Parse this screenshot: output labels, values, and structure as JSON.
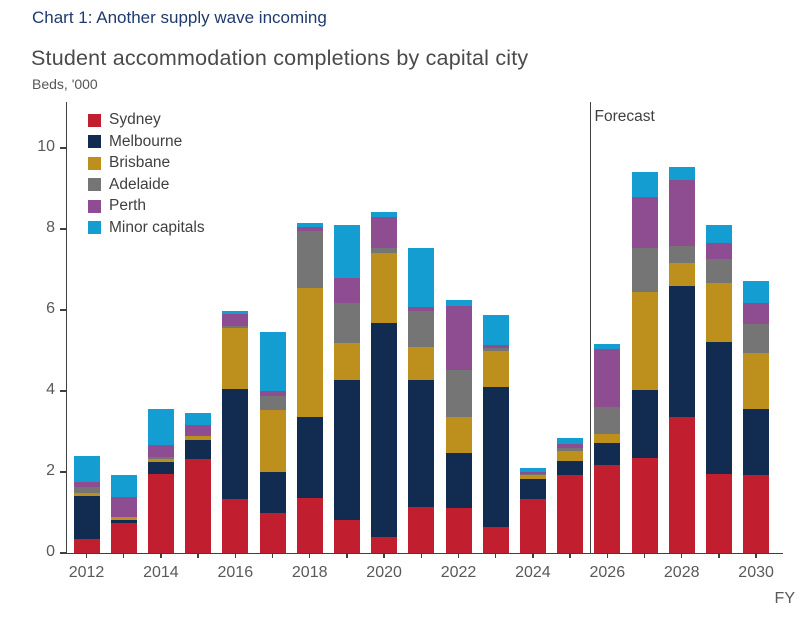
{
  "header": {
    "label": "Chart 1: Another supply wave incoming"
  },
  "chart_data": {
    "type": "bar",
    "stacked": true,
    "title": "Student accommodation completions by capital city",
    "ylabel": "Beds, '000",
    "xlabel": "FY",
    "ylim": [
      0,
      10
    ],
    "yticks": [
      0,
      2,
      4,
      6,
      8,
      10
    ],
    "grid": false,
    "legend_position": "top-left-inside",
    "forecast_label": "Forecast",
    "forecast_starts_before_category": "2026",
    "categories": [
      "2012",
      "2013",
      "2014",
      "2015",
      "2016",
      "2017",
      "2018",
      "2019",
      "2020",
      "2021",
      "2022",
      "2023",
      "2024",
      "2025",
      "2026",
      "2027",
      "2028",
      "2029",
      "2030"
    ],
    "xtick_labels": [
      "2012",
      "2014",
      "2016",
      "2018",
      "2020",
      "2022",
      "2024",
      "2026",
      "2028",
      "2030"
    ],
    "series": [
      {
        "name": "Sydney",
        "color": "#c11f2f",
        "values": [
          0.35,
          0.74,
          1.95,
          2.33,
          1.33,
          1.0,
          1.35,
          0.81,
          0.39,
          1.13,
          1.11,
          0.64,
          1.33,
          1.92,
          2.17,
          2.34,
          3.36,
          1.95,
          1.92
        ]
      },
      {
        "name": "Melbourne",
        "color": "#122b50",
        "values": [
          1.05,
          0.08,
          0.3,
          0.45,
          2.71,
          1.0,
          2.01,
          3.46,
          5.29,
          3.14,
          1.36,
          3.46,
          0.49,
          0.35,
          0.55,
          1.68,
          3.24,
          3.26,
          1.63
        ]
      },
      {
        "name": "Brisbane",
        "color": "#bd901e",
        "values": [
          0.08,
          0.07,
          0.08,
          0.1,
          1.51,
          1.53,
          3.19,
          0.92,
          1.73,
          0.82,
          0.89,
          0.89,
          0.1,
          0.25,
          0.22,
          2.42,
          0.57,
          1.46,
          1.39
        ]
      },
      {
        "name": "Adelaide",
        "color": "#757575",
        "values": [
          0.15,
          0.0,
          0.03,
          0.02,
          0.05,
          0.35,
          1.41,
          0.99,
          0.12,
          0.89,
          1.16,
          0.08,
          0.04,
          0.08,
          0.67,
          1.09,
          0.42,
          0.59,
          0.72
        ]
      },
      {
        "name": "Perth",
        "color": "#8e4d90",
        "values": [
          0.12,
          0.49,
          0.3,
          0.25,
          0.3,
          0.13,
          0.1,
          0.62,
          0.77,
          0.1,
          1.58,
          0.07,
          0.04,
          0.1,
          1.43,
          1.26,
          1.61,
          0.4,
          0.52
        ]
      },
      {
        "name": "Minor capitals",
        "color": "#149dd1",
        "values": [
          0.64,
          0.55,
          0.89,
          0.31,
          0.08,
          1.46,
          0.1,
          1.29,
          0.13,
          1.46,
          0.15,
          0.74,
          0.1,
          0.15,
          0.12,
          0.62,
          0.33,
          0.45,
          0.54
        ]
      }
    ]
  }
}
